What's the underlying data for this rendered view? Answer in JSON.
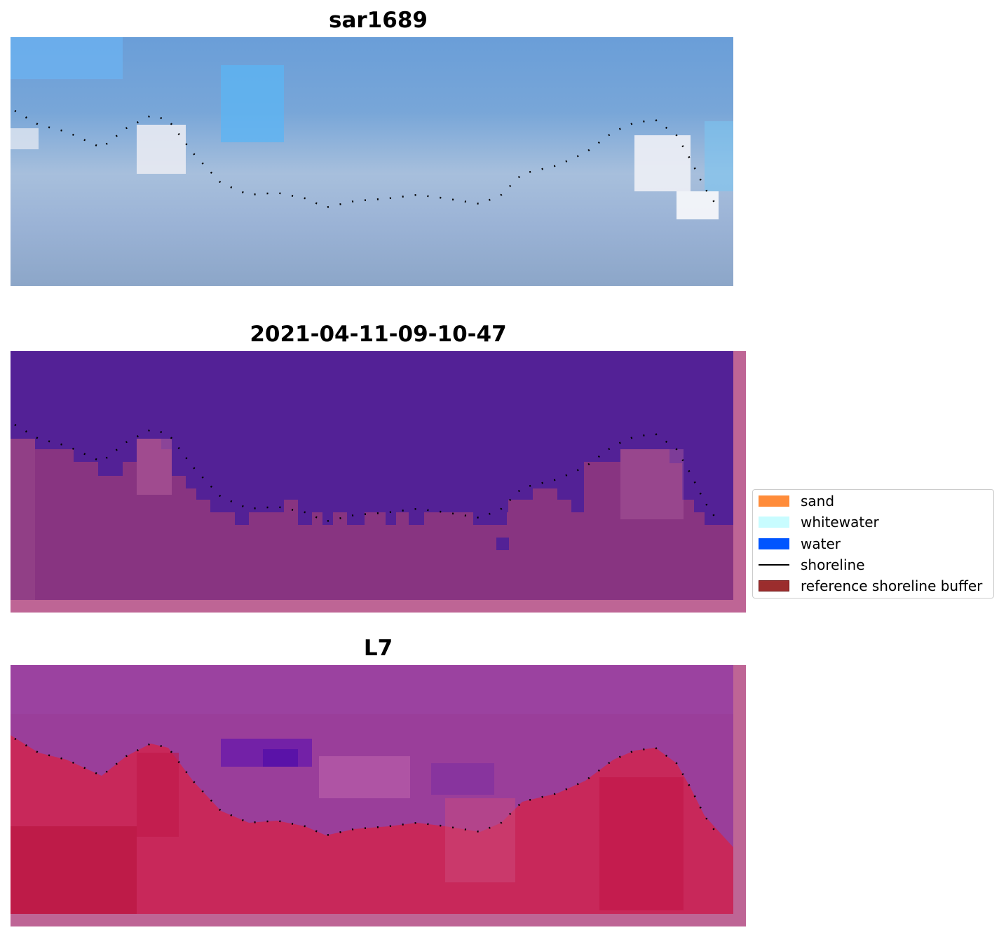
{
  "panels": [
    {
      "title": "sar1689"
    },
    {
      "title": "2021-04-11-09-10-47"
    },
    {
      "title": "L7"
    }
  ],
  "legend": {
    "items": [
      {
        "label": "sand",
        "color": "#ff8c3a",
        "kind": "patch"
      },
      {
        "label": "whitewater",
        "color": "#c8fcff",
        "kind": "patch"
      },
      {
        "label": "water",
        "color": "#0055ff",
        "kind": "patch"
      },
      {
        "label": "shoreline",
        "color": "#000000",
        "kind": "line"
      },
      {
        "label": "reference shoreline buffer",
        "color": "#9b2d2d",
        "kind": "patch"
      }
    ]
  }
}
